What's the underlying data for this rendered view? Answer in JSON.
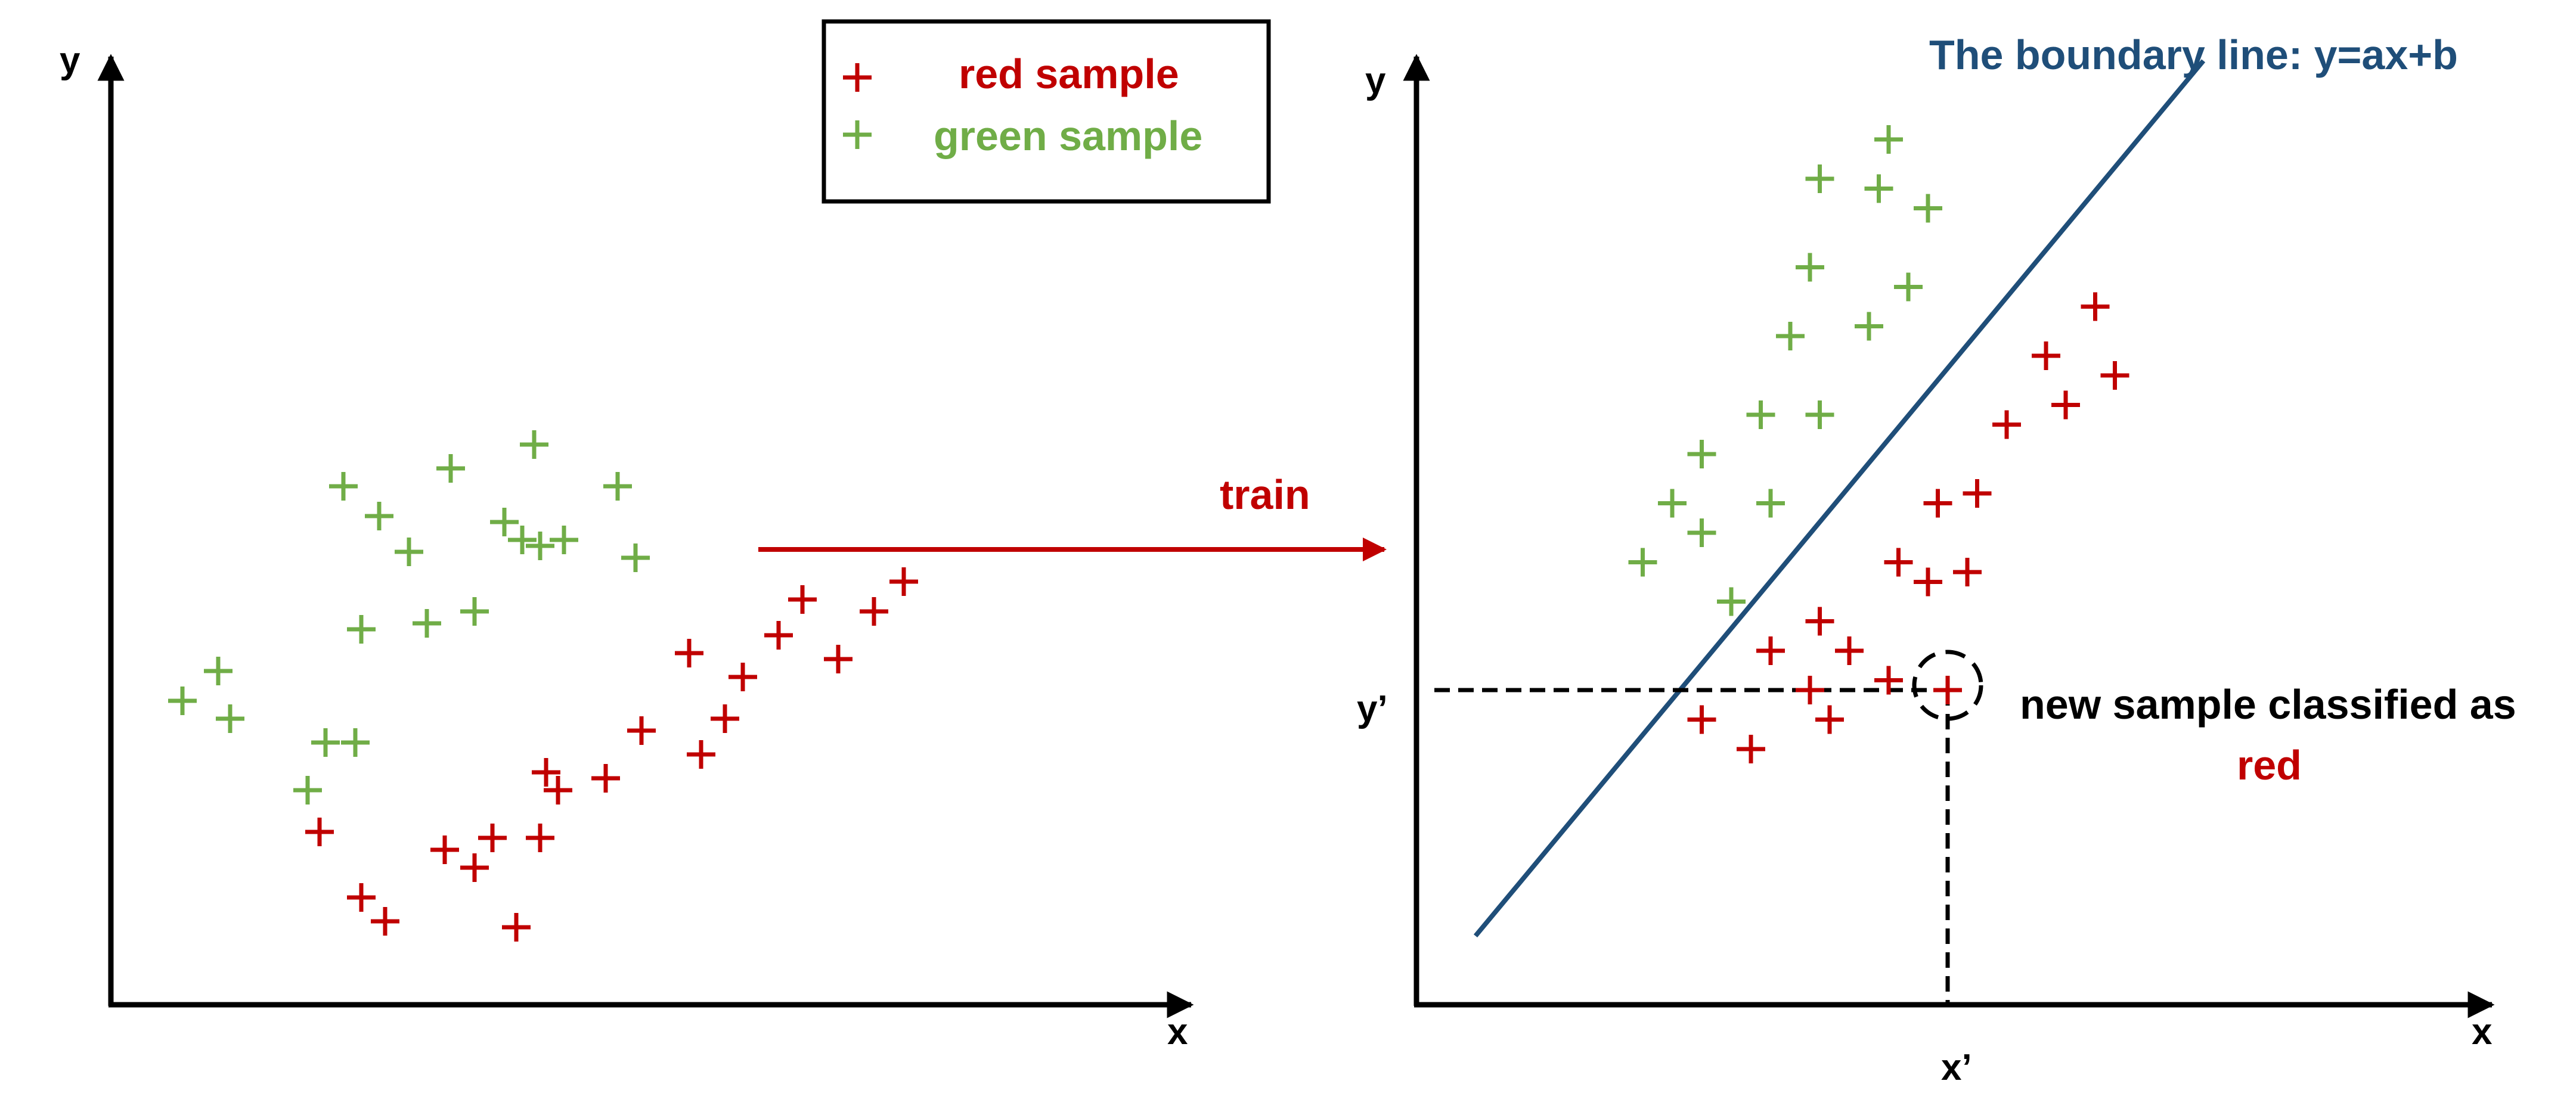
{
  "colors": {
    "red": "#C00000",
    "green": "#70AD47",
    "boundary": "#1F4E79",
    "axis": "#000000"
  },
  "legend": {
    "red_label": "red sample",
    "green_label": "green sample",
    "marker": "+"
  },
  "left_plot": {
    "x_label": "x",
    "y_label": "y",
    "green_points": [
      [
        1.2,
        5.1
      ],
      [
        1.8,
        5.6
      ],
      [
        2.0,
        4.8
      ],
      [
        3.3,
        3.6
      ],
      [
        4.2,
        6.3
      ],
      [
        3.9,
        8.7
      ],
      [
        4.5,
        8.2
      ],
      [
        5.7,
        9.0
      ],
      [
        5.0,
        7.6
      ],
      [
        5.3,
        6.4
      ],
      [
        6.1,
        6.6
      ],
      [
        6.6,
        8.1
      ],
      [
        6.9,
        7.8
      ],
      [
        7.1,
        9.4
      ],
      [
        7.2,
        7.7
      ],
      [
        7.6,
        7.8
      ],
      [
        8.5,
        8.7
      ],
      [
        8.8,
        7.5
      ],
      [
        3.6,
        4.4
      ],
      [
        4.1,
        4.4
      ]
    ],
    "red_points": [
      [
        3.5,
        2.9
      ],
      [
        4.2,
        1.8
      ],
      [
        4.6,
        1.4
      ],
      [
        5.6,
        2.6
      ],
      [
        6.1,
        2.3
      ],
      [
        6.4,
        2.8
      ],
      [
        6.8,
        1.3
      ],
      [
        7.2,
        2.8
      ],
      [
        7.5,
        3.6
      ],
      [
        7.3,
        3.9
      ],
      [
        8.3,
        3.8
      ],
      [
        8.9,
        4.6
      ],
      [
        9.7,
        5.9
      ],
      [
        9.9,
        4.2
      ],
      [
        10.3,
        4.8
      ],
      [
        10.6,
        5.5
      ],
      [
        11.2,
        6.2
      ],
      [
        11.6,
        6.8
      ],
      [
        12.2,
        5.8
      ],
      [
        12.8,
        6.6
      ],
      [
        13.3,
        7.1
      ]
    ]
  },
  "arrow": {
    "label": "train"
  },
  "right_plot": {
    "x_label": "x",
    "y_label": "y",
    "x_prime_label": "x’",
    "y_prime_label": "y’",
    "boundary_label": "The boundary line: y=ax+b",
    "boundary_line": {
      "x": [
        0.6,
        8.0
      ],
      "y": [
        0.7,
        9.6
      ]
    },
    "new_sample": {
      "x": 5.4,
      "y": 3.2,
      "class": "red"
    },
    "caption_text": "new sample classified as",
    "caption_class": "red",
    "green_points": [
      [
        2.3,
        4.5
      ],
      [
        2.6,
        5.1
      ],
      [
        2.9,
        5.6
      ],
      [
        2.9,
        4.8
      ],
      [
        3.2,
        4.1
      ],
      [
        3.5,
        6.0
      ],
      [
        3.6,
        5.1
      ],
      [
        3.8,
        6.8
      ],
      [
        4.0,
        7.5
      ],
      [
        4.1,
        8.4
      ],
      [
        4.1,
        6.0
      ],
      [
        4.6,
        6.9
      ],
      [
        4.7,
        8.3
      ],
      [
        4.8,
        8.8
      ],
      [
        5.0,
        7.3
      ],
      [
        5.2,
        8.1
      ]
    ],
    "red_points": [
      [
        2.9,
        2.9
      ],
      [
        3.4,
        2.6
      ],
      [
        3.6,
        3.6
      ],
      [
        4.0,
        3.2
      ],
      [
        4.1,
        3.9
      ],
      [
        4.4,
        3.6
      ],
      [
        4.9,
        4.5
      ],
      [
        5.2,
        4.3
      ],
      [
        5.6,
        4.4
      ],
      [
        5.3,
        5.1
      ],
      [
        5.7,
        5.2
      ],
      [
        6.0,
        5.9
      ],
      [
        6.4,
        6.6
      ],
      [
        6.6,
        6.1
      ],
      [
        6.9,
        7.1
      ],
      [
        7.1,
        6.4
      ],
      [
        4.2,
        2.9
      ],
      [
        4.8,
        3.3
      ]
    ]
  }
}
